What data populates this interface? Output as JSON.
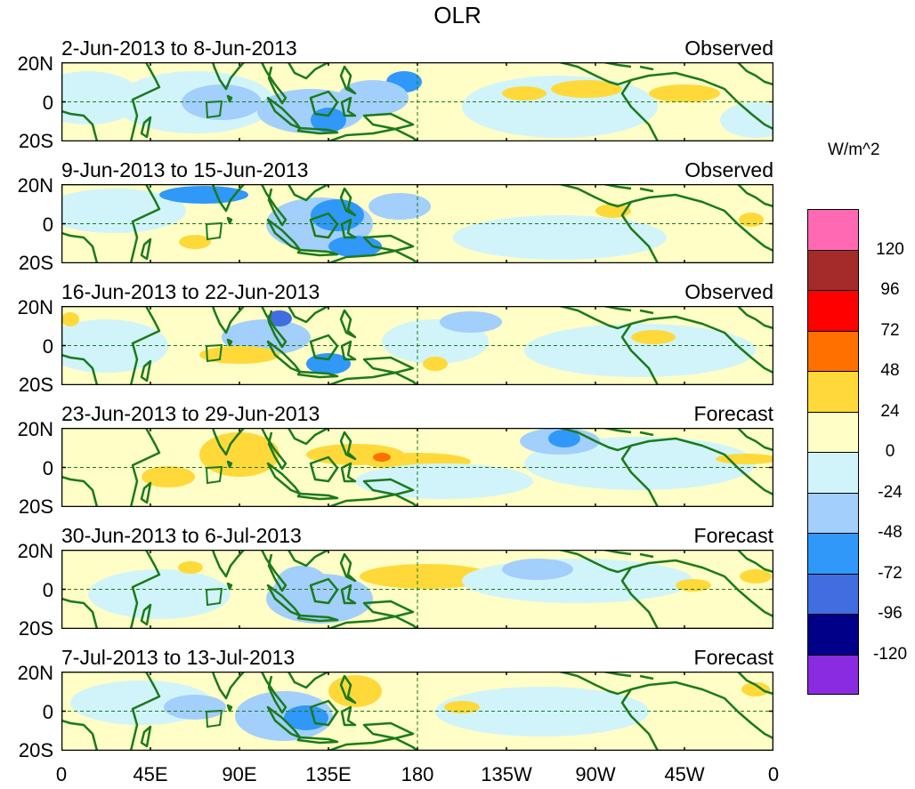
{
  "title": "OLR",
  "units": "W/m^2",
  "panels": [
    {
      "date": "2-Jun-2013 to 8-Jun-2013",
      "status": "Observed"
    },
    {
      "date": "9-Jun-2013 to 15-Jun-2013",
      "status": "Observed"
    },
    {
      "date": "16-Jun-2013 to 22-Jun-2013",
      "status": "Observed"
    },
    {
      "date": "23-Jun-2013 to 29-Jun-2013",
      "status": "Forecast"
    },
    {
      "date": "30-Jun-2013 to 6-Jul-2013",
      "status": "Forecast"
    },
    {
      "date": "7-Jul-2013 to 13-Jul-2013",
      "status": "Forecast"
    }
  ],
  "lat_labels": [
    "20N",
    "0",
    "20S"
  ],
  "lon_labels": [
    "0",
    "45E",
    "90E",
    "135E",
    "180",
    "135W",
    "90W",
    "45W",
    "0"
  ],
  "colorbar": {
    "colors_top_to_bottom": [
      "#ff69b4",
      "#a52a2a",
      "#ff0000",
      "#ff7000",
      "#ffd93a",
      "#fffec6",
      "#d1f4fa",
      "#a2cffb",
      "#2f98f9",
      "#406ee0",
      "#010088",
      "#8a2be2"
    ],
    "labels": [
      "120",
      "96",
      "72",
      "48",
      "24",
      "0",
      "-24",
      "-48",
      "-72",
      "-96",
      "-120"
    ]
  },
  "colors": {
    "land": "#1b7a1b",
    "frame": "#000000",
    "zero": "#fffec6",
    "neg1": "#d1f4fa",
    "neg2": "#a2cffb",
    "neg3": "#2f98f9",
    "neg4": "#406ee0",
    "pos1": "#ffd93a",
    "pos2": "#ff7000"
  }
}
